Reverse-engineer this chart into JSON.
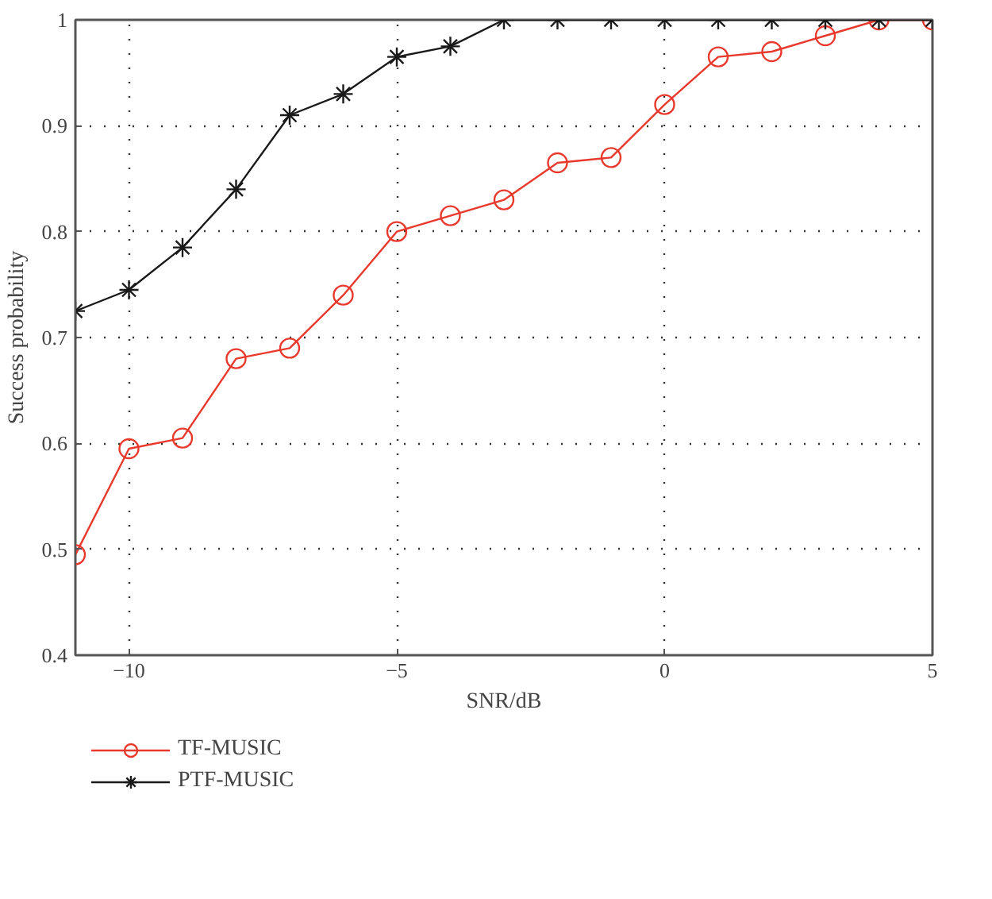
{
  "chart_data": {
    "type": "line",
    "xlabel": "SNR/dB",
    "ylabel": "Success probability",
    "x": [
      -11,
      -10,
      -9,
      -8,
      -7,
      -6,
      -5,
      -4,
      -3,
      -2,
      -1,
      0,
      1,
      2,
      3,
      4,
      5
    ],
    "series": [
      {
        "name": "TF-MUSIC",
        "color": "#e8392c",
        "marker": "circle",
        "values": [
          0.495,
          0.595,
          0.605,
          0.68,
          0.69,
          0.74,
          0.8,
          0.815,
          0.83,
          0.865,
          0.87,
          0.92,
          0.965,
          0.97,
          0.985,
          1.0,
          1.0
        ]
      },
      {
        "name": "PTF-MUSIC",
        "color": "#1a1a1a",
        "marker": "cross",
        "values": [
          0.725,
          0.745,
          0.785,
          0.84,
          0.91,
          0.93,
          0.965,
          0.975,
          1.0,
          1.0,
          1.0,
          1.0,
          1.0,
          1.0,
          1.0,
          1.0,
          1.0
        ]
      }
    ],
    "xlim": [
      -11,
      5
    ],
    "ylim": [
      0.4,
      1
    ],
    "xticks": [
      {
        "value": -10,
        "label": "−10"
      },
      {
        "value": -5,
        "label": "−5"
      },
      0,
      5
    ],
    "yticks": [
      0.4,
      0.5,
      0.6,
      0.7,
      0.8,
      0.9,
      1
    ],
    "grid": true,
    "legend": "bottom left",
    "line_style": "solid"
  }
}
